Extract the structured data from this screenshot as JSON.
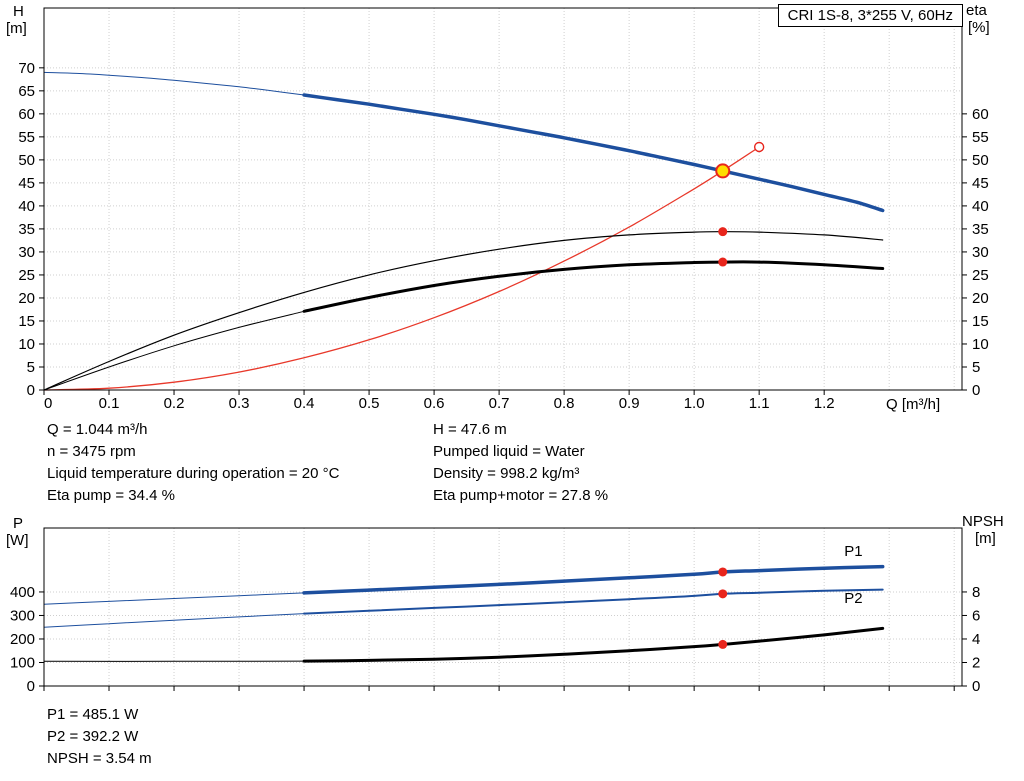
{
  "operating_info": {
    "left": [
      "Q = 1.044 m³/h",
      "n = 3475 rpm",
      "Liquid temperature during operation = 20 °C",
      "Eta pump = 34.4 %"
    ],
    "right": [
      "H = 47.6 m",
      "Pumped liquid = Water",
      "Density = 998.2 kg/m³",
      "Eta pump+motor = 27.8 %"
    ]
  },
  "power_info": [
    "P1 = 485.1 W",
    "P2 = 392.2 W",
    "NPSH = 3.54 m"
  ],
  "colors": {
    "curve_blue": "#1d4f9e",
    "curve_red": "#e8382a",
    "curve_black": "#000000",
    "marker_red": "#e8251c",
    "duty_fill": "#ffdd00",
    "grid": "#cfcfcf",
    "frame": "#000000"
  },
  "chart_data": [
    {
      "id": "top",
      "type": "line",
      "title": "CRI 1S-8, 3*255 V, 60Hz",
      "x_axis": {
        "label": "Q [m³/h]",
        "min": 0,
        "max": 1.412,
        "grid_step": 0.1,
        "tick_values": [
          0,
          0.1,
          0.2,
          0.3,
          0.4,
          0.5,
          0.6,
          0.7,
          0.8,
          0.9,
          1.0,
          1.1,
          1.2
        ],
        "tick_labels": [
          "0",
          "0.1",
          "0.2",
          "0.3",
          "0.4",
          "0.5",
          "0.6",
          "0.7",
          "0.8",
          "0.9",
          "1.0",
          "1.1",
          "1.2"
        ]
      },
      "y_left": {
        "name": "H",
        "unit": "[m]",
        "min": 0,
        "max": 83,
        "ticks": [
          0,
          5,
          10,
          15,
          20,
          25,
          30,
          35,
          40,
          45,
          50,
          55,
          60,
          65,
          70
        ]
      },
      "y_right": {
        "name": "eta",
        "unit": "[%]",
        "min": 0,
        "max": 83,
        "ticks": [
          0,
          5,
          10,
          15,
          20,
          25,
          30,
          35,
          40,
          45,
          50,
          55,
          60
        ]
      },
      "series": [
        {
          "name": "head-curve-lead",
          "axis": "left",
          "color": "#1d4f9e",
          "width": 1,
          "points": [
            [
              0,
              69.0
            ],
            [
              0.05,
              68.8
            ],
            [
              0.1,
              68.4
            ],
            [
              0.15,
              67.9
            ],
            [
              0.2,
              67.3
            ],
            [
              0.25,
              66.6
            ],
            [
              0.3,
              65.9
            ],
            [
              0.35,
              65.0
            ],
            [
              0.4,
              64.1
            ]
          ]
        },
        {
          "name": "head-curve",
          "axis": "left",
          "color": "#1d4f9e",
          "width": 3.5,
          "points": [
            [
              0.4,
              64.1
            ],
            [
              0.45,
              63.1
            ],
            [
              0.5,
              62.1
            ],
            [
              0.55,
              61.0
            ],
            [
              0.6,
              59.9
            ],
            [
              0.65,
              58.7
            ],
            [
              0.7,
              57.4
            ],
            [
              0.75,
              56.1
            ],
            [
              0.8,
              54.8
            ],
            [
              0.85,
              53.4
            ],
            [
              0.9,
              52.0
            ],
            [
              0.95,
              50.5
            ],
            [
              1.0,
              49.0
            ],
            [
              1.044,
              47.6
            ],
            [
              1.1,
              45.8
            ],
            [
              1.15,
              44.2
            ],
            [
              1.2,
              42.5
            ],
            [
              1.25,
              40.8
            ],
            [
              1.29,
              39.0
            ]
          ]
        },
        {
          "name": "system-curve",
          "axis": "left",
          "color": "#e8382a",
          "width": 1.3,
          "points": [
            [
              0,
              0
            ],
            [
              0.1,
              0.4
            ],
            [
              0.2,
              1.7
            ],
            [
              0.3,
              3.9
            ],
            [
              0.4,
              7.0
            ],
            [
              0.5,
              10.9
            ],
            [
              0.6,
              15.7
            ],
            [
              0.7,
              21.4
            ],
            [
              0.8,
              28.0
            ],
            [
              0.9,
              35.4
            ],
            [
              1.0,
              43.7
            ],
            [
              1.044,
              47.6
            ],
            [
              1.1,
              52.8
            ]
          ]
        },
        {
          "name": "eta-pump-curve",
          "axis": "right",
          "color": "#000000",
          "width": 1.2,
          "points": [
            [
              0,
              0
            ],
            [
              0.1,
              6.2
            ],
            [
              0.2,
              11.9
            ],
            [
              0.3,
              16.8
            ],
            [
              0.4,
              21.2
            ],
            [
              0.5,
              25.0
            ],
            [
              0.6,
              28.1
            ],
            [
              0.7,
              30.6
            ],
            [
              0.8,
              32.5
            ],
            [
              0.9,
              33.7
            ],
            [
              1.0,
              34.3
            ],
            [
              1.044,
              34.4
            ],
            [
              1.1,
              34.3
            ],
            [
              1.2,
              33.7
            ],
            [
              1.29,
              32.6
            ]
          ]
        },
        {
          "name": "eta-pump-motor-curve-lead",
          "axis": "right",
          "color": "#000000",
          "width": 1,
          "points": [
            [
              0,
              0
            ],
            [
              0.1,
              5.0
            ],
            [
              0.2,
              9.6
            ],
            [
              0.3,
              13.6
            ],
            [
              0.4,
              17.1
            ]
          ]
        },
        {
          "name": "eta-pump-motor-curve",
          "axis": "right",
          "color": "#000000",
          "width": 3,
          "points": [
            [
              0.4,
              17.1
            ],
            [
              0.5,
              20.1
            ],
            [
              0.6,
              22.7
            ],
            [
              0.7,
              24.7
            ],
            [
              0.8,
              26.2
            ],
            [
              0.9,
              27.2
            ],
            [
              1.0,
              27.7
            ],
            [
              1.044,
              27.8
            ],
            [
              1.1,
              27.8
            ],
            [
              1.2,
              27.2
            ],
            [
              1.29,
              26.4
            ]
          ]
        }
      ],
      "markers": [
        {
          "type": "dot",
          "x": 1.044,
          "y": 34.4,
          "axis": "right"
        },
        {
          "type": "dot",
          "x": 1.044,
          "y": 27.8,
          "axis": "right"
        },
        {
          "type": "open",
          "x": 1.1,
          "y": 52.8,
          "axis": "left"
        },
        {
          "type": "duty",
          "x": 1.044,
          "y": 47.6,
          "axis": "left"
        }
      ],
      "labels": []
    },
    {
      "id": "bottom",
      "type": "line",
      "title": "",
      "x_axis": {
        "label": "",
        "min": 0,
        "max": 1.412,
        "grid_step": 0.1,
        "tick_values": [
          0,
          0.1,
          0.2,
          0.3,
          0.4,
          0.5,
          0.6,
          0.7,
          0.8,
          0.9,
          1.0,
          1.1,
          1.2,
          1.3,
          1.4
        ],
        "tick_labels": []
      },
      "y_left": {
        "name": "P",
        "unit": "[W]",
        "min": 0,
        "max": 672,
        "ticks": [
          0,
          100,
          200,
          300,
          400
        ]
      },
      "y_right": {
        "name": "NPSH",
        "unit": "[m]",
        "min": 0,
        "max": 13.44,
        "ticks": [
          0,
          2,
          4,
          6,
          8
        ]
      },
      "series": [
        {
          "name": "p1-curve-lead",
          "axis": "left",
          "color": "#1d4f9e",
          "width": 1,
          "points": [
            [
              0,
              348
            ],
            [
              0.1,
              360
            ],
            [
              0.2,
              372
            ],
            [
              0.3,
              384
            ],
            [
              0.4,
              396
            ]
          ]
        },
        {
          "name": "p1-curve",
          "axis": "left",
          "color": "#1d4f9e",
          "width": 3.5,
          "points": [
            [
              0.4,
              396
            ],
            [
              0.5,
              408
            ],
            [
              0.6,
              420
            ],
            [
              0.7,
              432
            ],
            [
              0.8,
              446
            ],
            [
              0.9,
              460
            ],
            [
              1.0,
              475
            ],
            [
              1.044,
              485
            ],
            [
              1.1,
              491
            ],
            [
              1.2,
              501
            ],
            [
              1.29,
              508
            ]
          ]
        },
        {
          "name": "p2-curve-lead",
          "axis": "left",
          "color": "#1d4f9e",
          "width": 1,
          "points": [
            [
              0,
              250
            ],
            [
              0.1,
              265
            ],
            [
              0.2,
              280
            ],
            [
              0.3,
              294
            ],
            [
              0.4,
              308
            ]
          ]
        },
        {
          "name": "p2-curve",
          "axis": "left",
          "color": "#1d4f9e",
          "width": 2,
          "points": [
            [
              0.4,
              308
            ],
            [
              0.5,
              320
            ],
            [
              0.6,
              332
            ],
            [
              0.7,
              344
            ],
            [
              0.8,
              356
            ],
            [
              0.9,
              369
            ],
            [
              1.0,
              383
            ],
            [
              1.044,
              392
            ],
            [
              1.1,
              397
            ],
            [
              1.2,
              405
            ],
            [
              1.29,
              410
            ]
          ]
        },
        {
          "name": "npsh-curve-lead",
          "axis": "right",
          "color": "#000000",
          "width": 1,
          "points": [
            [
              0,
              2.1
            ],
            [
              0.2,
              2.1
            ],
            [
              0.4,
              2.12
            ]
          ]
        },
        {
          "name": "npsh-curve",
          "axis": "right",
          "color": "#000000",
          "width": 3,
          "points": [
            [
              0.4,
              2.12
            ],
            [
              0.5,
              2.18
            ],
            [
              0.6,
              2.28
            ],
            [
              0.7,
              2.45
            ],
            [
              0.8,
              2.7
            ],
            [
              0.9,
              3.0
            ],
            [
              1.0,
              3.35
            ],
            [
              1.044,
              3.54
            ],
            [
              1.1,
              3.82
            ],
            [
              1.2,
              4.35
            ],
            [
              1.29,
              4.9
            ]
          ]
        }
      ],
      "markers": [
        {
          "type": "dot",
          "x": 1.044,
          "y": 485,
          "axis": "left"
        },
        {
          "type": "dot",
          "x": 1.044,
          "y": 392,
          "axis": "left"
        },
        {
          "type": "dot",
          "x": 1.044,
          "y": 3.54,
          "axis": "right"
        }
      ],
      "labels": [
        {
          "text": "P1",
          "x": 1.245,
          "y": 553,
          "axis": "left",
          "color": "#1d4f9e"
        },
        {
          "text": "P2",
          "x": 1.245,
          "y": 353,
          "axis": "left",
          "color": "#1d4f9e"
        }
      ]
    }
  ]
}
